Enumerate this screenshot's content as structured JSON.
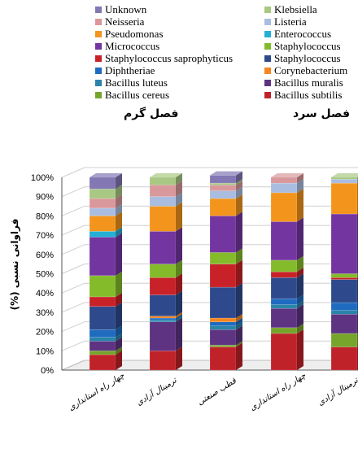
{
  "legend": [
    {
      "label": "Unknown",
      "color": "#8377b4"
    },
    {
      "label": "Klebsiella",
      "color": "#a8c883"
    },
    {
      "label": "Neisseria",
      "color": "#d9999c"
    },
    {
      "label": "Listeria",
      "color": "#a9bde0"
    },
    {
      "label": "Pseudomonas",
      "color": "#f3951c"
    },
    {
      "label": "Enterococcus",
      "color": "#25aed6"
    },
    {
      "label": "Micrococcus",
      "color": "#7336a0"
    },
    {
      "label": "Staphylococcus",
      "color": "#84bb2b"
    },
    {
      "label": "Staphylococcus saprophyticus",
      "color": "#c82228"
    },
    {
      "label": "Staphylococcus",
      "color": "#2f4a8c"
    },
    {
      "label": "Diphtheriae",
      "color": "#1e6bc0"
    },
    {
      "label": "Corynebacterium",
      "color": "#f58621"
    },
    {
      "label": "Bacillus luteus",
      "color": "#2a84a8"
    },
    {
      "label": "Bacillus muralis",
      "color": "#5d3382"
    },
    {
      "label": "Bacillus cereus",
      "color": "#77a52c"
    },
    {
      "label": "Bacillus subtilis",
      "color": "#c0222a"
    }
  ],
  "seasons": {
    "warm": "فصل گرم",
    "cold": "فصل سرد"
  },
  "ylabel": "فراوانی نسبی (%)",
  "chart_data": {
    "type": "bar",
    "stacked": true,
    "ylim": [
      0,
      100
    ],
    "yticks": [
      "0%",
      "10%",
      "20%",
      "30%",
      "40%",
      "50%",
      "60%",
      "70%",
      "80%",
      "90%",
      "100%"
    ],
    "categories": [
      "چهار راه استانداری",
      "ترمینال آزادی",
      "قطب صنعتی",
      "چهار راه استانداری",
      "ترمینال آزادی"
    ],
    "groups": [
      {
        "name": "فصل گرم",
        "categories": [
          0,
          1,
          2
        ]
      },
      {
        "name": "فصل سرد",
        "categories": [
          3,
          4
        ]
      }
    ],
    "series": [
      {
        "name": "Bacillus subtilis",
        "color": "#c0222a",
        "values": [
          8,
          10,
          12,
          19,
          12
        ]
      },
      {
        "name": "Bacillus cereus",
        "color": "#77a52c",
        "values": [
          2,
          0,
          1,
          3,
          7
        ]
      },
      {
        "name": "Bacillus muralis",
        "color": "#5d3382",
        "values": [
          5,
          15,
          8,
          10,
          10
        ]
      },
      {
        "name": "Bacillus luteus",
        "color": "#2a84a8",
        "values": [
          2,
          1,
          2,
          2,
          2
        ]
      },
      {
        "name": "Diphtheriae",
        "color": "#1e6bc0",
        "values": [
          4,
          1,
          2,
          3,
          4
        ]
      },
      {
        "name": "Corynebacterium",
        "color": "#f58621",
        "values": [
          0,
          1,
          2,
          0,
          0
        ]
      },
      {
        "name": "Staphylococcus",
        "color": "#2f4a8c",
        "values": [
          12,
          11,
          16,
          11,
          12
        ]
      },
      {
        "name": "Staphylococcus saprophyticus",
        "color": "#c82228",
        "values": [
          5,
          9,
          12,
          3,
          1
        ]
      },
      {
        "name": "Staphylococcus",
        "color": "#84bb2b",
        "values": [
          11,
          7,
          6,
          6,
          2
        ]
      },
      {
        "name": "Micrococcus",
        "color": "#7336a0",
        "values": [
          20,
          17,
          19,
          20,
          31
        ]
      },
      {
        "name": "Enterococcus",
        "color": "#25aed6",
        "values": [
          3,
          0,
          0,
          0,
          0
        ]
      },
      {
        "name": "Pseudomonas",
        "color": "#f3951c",
        "values": [
          8,
          13,
          9,
          15,
          16
        ]
      },
      {
        "name": "Listeria",
        "color": "#a9bde0",
        "values": [
          4,
          5,
          4,
          5,
          2
        ]
      },
      {
        "name": "Neisseria",
        "color": "#d9999c",
        "values": [
          5,
          6,
          3,
          3,
          0
        ]
      },
      {
        "name": "Klebsiella",
        "color": "#a8c883",
        "values": [
          5,
          4,
          1,
          0,
          1
        ]
      },
      {
        "name": "Unknown",
        "color": "#8377b4",
        "values": [
          6,
          0,
          4,
          0,
          0
        ]
      }
    ]
  }
}
